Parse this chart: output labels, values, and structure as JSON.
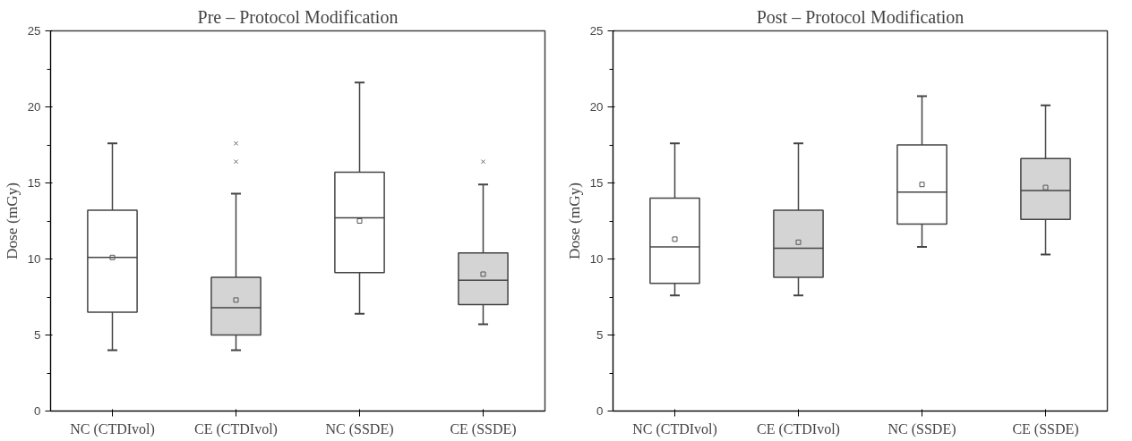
{
  "chart_data": [
    {
      "type": "box",
      "title": "Pre – Protocol Modification",
      "ylabel": "Dose (mGy)",
      "categories": [
        "NC (CTDIvol)",
        "CE (CTDIvol)",
        "NC (SSDE)",
        "CE (SSDE)"
      ],
      "colors": [
        "#ffffff",
        "#d4d4d4",
        "#ffffff",
        "#d4d4d4"
      ],
      "ylim": [
        0,
        25
      ],
      "yticks": [
        0,
        5,
        10,
        15,
        20,
        25
      ],
      "grid": false,
      "boxes": [
        {
          "low": 4,
          "q1": 6.5,
          "median": 10.1,
          "q3": 13.2,
          "high": 17.6,
          "mean": 10.1
        },
        {
          "low": 4,
          "q1": 5,
          "median": 6.8,
          "q3": 8.8,
          "high": 14.3,
          "mean": 7.3,
          "outliers": [
            16.4,
            17.6
          ]
        },
        {
          "low": 6.4,
          "q1": 9.1,
          "median": 12.7,
          "q3": 15.7,
          "high": 21.6,
          "mean": 12.5
        },
        {
          "low": 5.7,
          "q1": 7,
          "median": 8.6,
          "q3": 10.4,
          "high": 14.9,
          "mean": 9,
          "outliers": [
            16.4
          ]
        }
      ]
    },
    {
      "type": "box",
      "title": "Post – Protocol Modification",
      "ylabel": "Dose (mGy)",
      "categories": [
        "NC (CTDIvol)",
        "CE (CTDIvol)",
        "NC (SSDE)",
        "CE (SSDE)"
      ],
      "colors": [
        "#ffffff",
        "#d4d4d4",
        "#ffffff",
        "#d4d4d4"
      ],
      "ylim": [
        0,
        25
      ],
      "yticks": [
        0,
        5,
        10,
        15,
        20,
        25
      ],
      "grid": false,
      "boxes": [
        {
          "low": 7.6,
          "q1": 8.4,
          "median": 10.8,
          "q3": 14.0,
          "high": 17.6,
          "mean": 11.3
        },
        {
          "low": 7.6,
          "q1": 8.8,
          "median": 10.7,
          "q3": 13.2,
          "high": 17.6,
          "mean": 11.1
        },
        {
          "low": 10.8,
          "q1": 12.3,
          "median": 14.4,
          "q3": 17.5,
          "high": 20.7,
          "mean": 14.9
        },
        {
          "low": 10.3,
          "q1": 12.6,
          "median": 14.5,
          "q3": 16.6,
          "high": 20.1,
          "mean": 14.7
        }
      ]
    }
  ]
}
